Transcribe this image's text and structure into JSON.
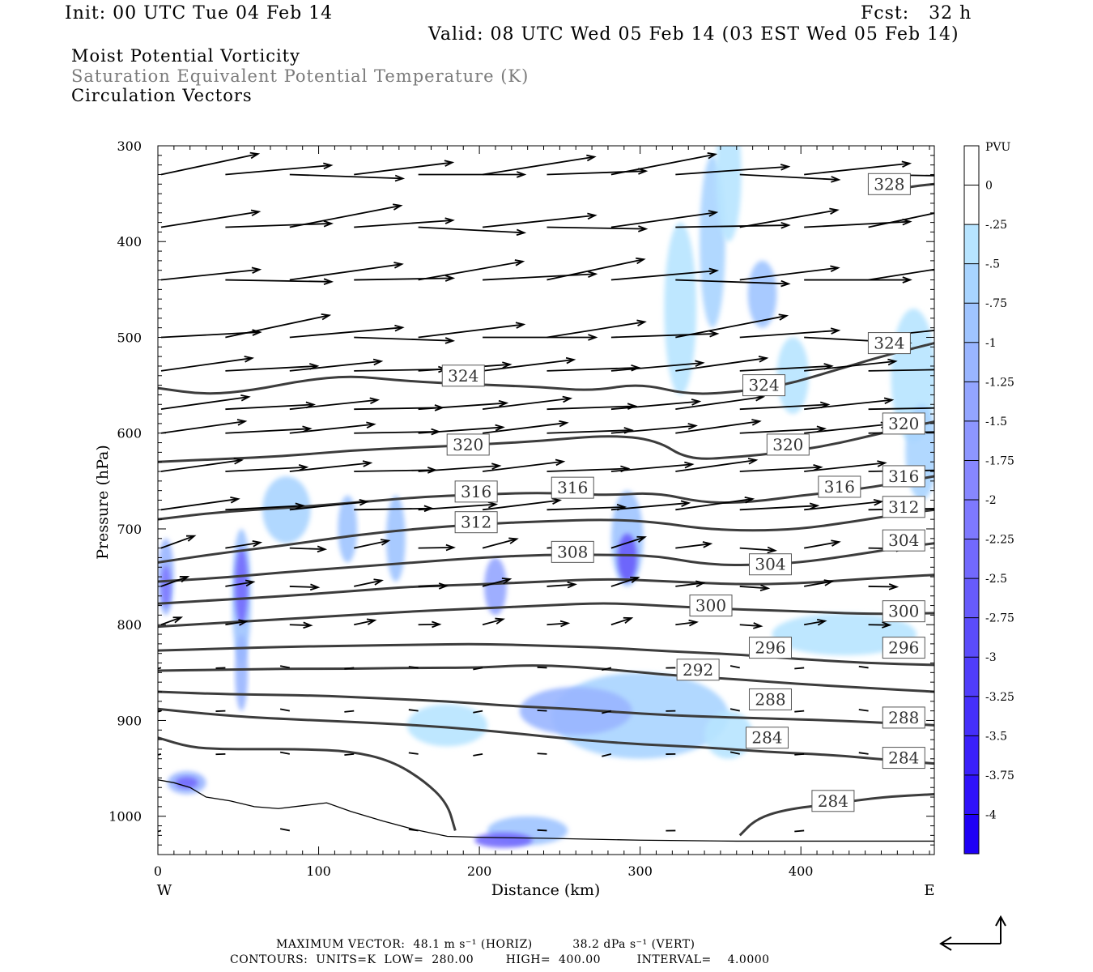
{
  "header": {
    "init": "Init: 00 UTC Tue 04 Feb 14",
    "fcst": "Fcst:   32 h",
    "valid": "Valid: 08 UTC Wed 05 Feb 14 (03 EST Wed 05 Feb 14)"
  },
  "fields": {
    "shaded": "Moist Potential Vorticity",
    "contour": "Saturation Equivalent Potential Temperature (K)",
    "vectors": "Circulation Vectors"
  },
  "chart_data": {
    "type": "cross-section",
    "xlabel": "Distance (km)",
    "ylabel": "Pressure (hPa)",
    "xlim": [
      0,
      483
    ],
    "ylim": [
      300,
      1040
    ],
    "y_axis_inverted": true,
    "x_ticks": [
      0,
      100,
      200,
      300,
      400
    ],
    "y_ticks": [
      300,
      400,
      500,
      600,
      700,
      800,
      900,
      1000
    ],
    "x_end_labels": {
      "left": "W",
      "right": "E"
    },
    "colorbar": {
      "unit": "PVU",
      "levels": [
        "0",
        "-.25",
        "-.5",
        "-.75",
        "-1",
        "-1.25",
        "-1.5",
        "-1.75",
        "-2",
        "-2.25",
        "-2.5",
        "-2.75",
        "-3",
        "-3.25",
        "-3.5",
        "-3.75",
        "-4"
      ],
      "colors": [
        "#ffffff",
        "#ffffff",
        "#b7e4ff",
        "#a8d4ff",
        "#9fc4ff",
        "#99b5ff",
        "#93a5ff",
        "#8d96ff",
        "#8787ff",
        "#7e79ff",
        "#7269fd",
        "#675bfb",
        "#5b4cfa",
        "#503dfa",
        "#452ffa",
        "#3a20fa",
        "#2f12fa",
        "#1f00f5"
      ]
    },
    "contours": [
      {
        "label": "328",
        "points": [
          [
            454,
            350
          ],
          [
            462,
            345
          ],
          [
            471,
            342
          ],
          [
            483,
            340
          ]
        ]
      },
      {
        "label": "324",
        "points": [
          [
            0,
            553
          ],
          [
            30,
            560
          ],
          [
            60,
            555
          ],
          [
            90,
            545
          ],
          [
            120,
            540
          ],
          [
            150,
            545
          ],
          [
            180,
            548
          ],
          [
            210,
            550
          ],
          [
            240,
            552
          ],
          [
            270,
            556
          ],
          [
            300,
            548
          ],
          [
            330,
            560
          ],
          [
            360,
            557
          ],
          [
            390,
            550
          ],
          [
            420,
            535
          ],
          [
            450,
            520
          ],
          [
            483,
            506
          ]
        ]
      },
      {
        "label": "320",
        "points": [
          [
            0,
            630
          ],
          [
            40,
            627
          ],
          [
            80,
            624
          ],
          [
            120,
            618
          ],
          [
            160,
            615
          ],
          [
            200,
            612
          ],
          [
            240,
            608
          ],
          [
            280,
            602
          ],
          [
            310,
            607
          ],
          [
            330,
            628
          ],
          [
            360,
            625
          ],
          [
            390,
            620
          ],
          [
            420,
            612
          ],
          [
            450,
            600
          ],
          [
            483,
            588
          ]
        ]
      },
      {
        "label": "316",
        "points": [
          [
            0,
            690
          ],
          [
            40,
            682
          ],
          [
            80,
            678
          ],
          [
            120,
            673
          ],
          [
            160,
            667
          ],
          [
            200,
            664
          ],
          [
            240,
            662
          ],
          [
            280,
            665
          ],
          [
            310,
            662
          ],
          [
            340,
            673
          ],
          [
            370,
            672
          ],
          [
            400,
            665
          ],
          [
            430,
            660
          ],
          [
            460,
            652
          ],
          [
            483,
            645
          ]
        ]
      },
      {
        "label": "312",
        "points": [
          [
            0,
            735
          ],
          [
            40,
            725
          ],
          [
            80,
            717
          ],
          [
            120,
            707
          ],
          [
            160,
            700
          ],
          [
            200,
            695
          ],
          [
            240,
            692
          ],
          [
            280,
            690
          ],
          [
            310,
            693
          ],
          [
            340,
            700
          ],
          [
            370,
            702
          ],
          [
            400,
            700
          ],
          [
            430,
            693
          ],
          [
            460,
            685
          ],
          [
            483,
            680
          ]
        ]
      },
      {
        "label": "308",
        "points": [
          [
            0,
            755
          ],
          [
            40,
            751
          ],
          [
            80,
            745
          ],
          [
            120,
            740
          ],
          [
            160,
            735
          ],
          [
            200,
            730
          ],
          [
            240,
            727
          ],
          [
            280,
            727
          ],
          [
            310,
            728
          ],
          [
            340,
            737
          ],
          [
            370,
            738
          ],
          [
            400,
            735
          ],
          [
            430,
            728
          ],
          [
            460,
            720
          ],
          [
            483,
            715
          ]
        ]
      },
      {
        "label": "304",
        "points": [
          [
            0,
            778
          ],
          [
            40,
            774
          ],
          [
            80,
            770
          ],
          [
            120,
            765
          ],
          [
            160,
            760
          ],
          [
            200,
            758
          ],
          [
            240,
            755
          ],
          [
            280,
            752
          ],
          [
            320,
            755
          ],
          [
            360,
            758
          ],
          [
            400,
            757
          ],
          [
            440,
            752
          ],
          [
            483,
            748
          ]
        ]
      },
      {
        "label": "300",
        "points": [
          [
            0,
            802
          ],
          [
            40,
            798
          ],
          [
            80,
            794
          ],
          [
            120,
            790
          ],
          [
            160,
            786
          ],
          [
            200,
            783
          ],
          [
            240,
            780
          ],
          [
            280,
            777
          ],
          [
            320,
            781
          ],
          [
            360,
            784
          ],
          [
            400,
            786
          ],
          [
            440,
            789
          ],
          [
            483,
            788
          ]
        ]
      },
      {
        "label": "296",
        "points": [
          [
            0,
            827
          ],
          [
            40,
            825
          ],
          [
            80,
            823
          ],
          [
            120,
            822
          ],
          [
            160,
            821
          ],
          [
            200,
            820
          ],
          [
            240,
            822
          ],
          [
            280,
            824
          ],
          [
            320,
            828
          ],
          [
            360,
            831
          ],
          [
            400,
            836
          ],
          [
            440,
            840
          ],
          [
            483,
            842
          ]
        ]
      },
      {
        "label": "292",
        "points": [
          [
            0,
            848
          ],
          [
            40,
            847
          ],
          [
            80,
            846
          ],
          [
            120,
            846
          ],
          [
            160,
            845
          ],
          [
            200,
            845
          ],
          [
            230,
            842
          ],
          [
            260,
            844
          ],
          [
            290,
            848
          ],
          [
            320,
            853
          ],
          [
            360,
            857
          ],
          [
            400,
            862
          ],
          [
            440,
            866
          ],
          [
            483,
            870
          ]
        ]
      },
      {
        "label": "288",
        "points": [
          [
            0,
            870
          ],
          [
            30,
            872
          ],
          [
            60,
            873
          ],
          [
            100,
            874
          ],
          [
            140,
            877
          ],
          [
            180,
            880
          ],
          [
            220,
            885
          ],
          [
            260,
            888
          ],
          [
            300,
            893
          ],
          [
            340,
            896
          ],
          [
            380,
            898
          ],
          [
            420,
            900
          ],
          [
            460,
            903
          ],
          [
            483,
            905
          ]
        ]
      },
      {
        "label": "284",
        "points": [
          [
            0,
            888
          ],
          [
            30,
            893
          ],
          [
            60,
            897
          ],
          [
            100,
            900
          ],
          [
            140,
            903
          ],
          [
            180,
            907
          ],
          [
            220,
            913
          ],
          [
            260,
            920
          ],
          [
            300,
            925
          ],
          [
            340,
            928
          ],
          [
            380,
            933
          ],
          [
            420,
            936
          ],
          [
            460,
            942
          ],
          [
            483,
            945
          ]
        ]
      },
      {
        "label": "284",
        "points": [
          [
            0,
            918
          ],
          [
            20,
            928
          ],
          [
            40,
            930
          ],
          [
            60,
            930
          ],
          [
            90,
            930
          ],
          [
            120,
            932
          ],
          [
            145,
            942
          ],
          [
            165,
            962
          ],
          [
            180,
            986
          ],
          [
            185,
            1015
          ]
        ]
      },
      {
        "label": "284",
        "points": [
          [
            362,
            1020
          ],
          [
            372,
            1003
          ],
          [
            390,
            993
          ],
          [
            420,
            987
          ],
          [
            450,
            980
          ],
          [
            483,
            977
          ]
        ]
      }
    ],
    "contour_units": "K",
    "contour_low": "280.00",
    "contour_high": "400.00",
    "contour_interval": "4.0000",
    "max_vector_horiz": "48.1 m s⁻¹ (HORIZ)",
    "max_vector_vert": "38.2 dPa s⁻¹ (VERT)"
  },
  "footer": {
    "max_vector": "MAXIMUM VECTOR:  48.1 m s⁻¹ (HORIZ)          38.2 dPa s⁻¹ (VERT)",
    "contours": "CONTOURS:  UNITS=K  LOW=  280.00        HIGH=  400.00         INTERVAL=    4.0000"
  }
}
